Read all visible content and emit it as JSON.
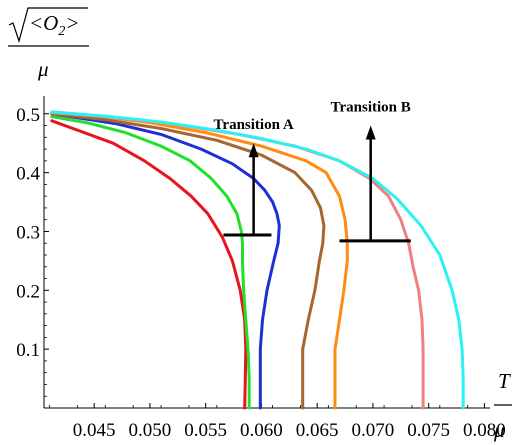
{
  "chart_data": {
    "type": "line",
    "xlabel_top": "T",
    "xlabel_bottom": "μ",
    "ylabel_top": "<O",
    "ylabel_sub": "2",
    "ylabel_top_close": ">",
    "ylabel_bottom": "μ",
    "xlim": [
      0.0405,
      0.0805
    ],
    "ylim": [
      0.0,
      0.52
    ],
    "x_ticks": [
      {
        "value": 0.045,
        "label": "0.045"
      },
      {
        "value": 0.05,
        "label": "0.050"
      },
      {
        "value": 0.055,
        "label": "0.055"
      },
      {
        "value": 0.06,
        "label": "0.060"
      },
      {
        "value": 0.065,
        "label": "0.065"
      },
      {
        "value": 0.07,
        "label": "0.070"
      },
      {
        "value": 0.075,
        "label": "0.075"
      },
      {
        "value": 0.08,
        "label": "0.080"
      }
    ],
    "y_ticks": [
      {
        "value": 0.1,
        "label": "0.1"
      },
      {
        "value": 0.2,
        "label": "0.2"
      },
      {
        "value": 0.3,
        "label": "0.3"
      },
      {
        "value": 0.4,
        "label": "0.4"
      },
      {
        "value": 0.5,
        "label": "0.5"
      }
    ],
    "series": [
      {
        "color": "#e8141b",
        "x": [
          0.0585,
          0.05855,
          0.0586,
          0.0585,
          0.0581,
          0.0574,
          0.0565,
          0.0552,
          0.0537,
          0.0518,
          0.0495,
          0.0467,
          0.0438,
          0.0412
        ],
        "y": [
          0.0,
          0.05,
          0.1,
          0.15,
          0.2,
          0.25,
          0.29,
          0.33,
          0.36,
          0.39,
          0.42,
          0.45,
          0.47,
          0.488
        ]
      },
      {
        "color": "#22e02a",
        "x": [
          0.0589,
          0.0589,
          0.0588,
          0.0586,
          0.0584,
          0.0583,
          0.0583,
          0.0582,
          0.0578,
          0.0569,
          0.0555,
          0.0536,
          0.051,
          0.0478,
          0.0443,
          0.0412
        ],
        "y": [
          0.0,
          0.05,
          0.1,
          0.15,
          0.2,
          0.25,
          0.28,
          0.3,
          0.33,
          0.36,
          0.39,
          0.42,
          0.445,
          0.468,
          0.485,
          0.495
        ]
      },
      {
        "color": "#1f2fd4",
        "x": [
          0.0599,
          0.0599,
          0.0599,
          0.0601,
          0.0605,
          0.0611,
          0.0615,
          0.0616,
          0.0614,
          0.061,
          0.0603,
          0.0593,
          0.0574,
          0.0546,
          0.051,
          0.047,
          0.0412
        ],
        "y": [
          0.0,
          0.05,
          0.1,
          0.15,
          0.2,
          0.25,
          0.28,
          0.31,
          0.33,
          0.35,
          0.37,
          0.39,
          0.415,
          0.44,
          0.465,
          0.483,
          0.5
        ]
      },
      {
        "color": "#a5662f",
        "x": [
          0.0637,
          0.0637,
          0.0637,
          0.0642,
          0.0648,
          0.0652,
          0.0655,
          0.0656,
          0.0653,
          0.0645,
          0.063,
          0.06,
          0.056,
          0.051,
          0.046,
          0.0412
        ],
        "y": [
          0.0,
          0.05,
          0.1,
          0.15,
          0.2,
          0.25,
          0.28,
          0.31,
          0.34,
          0.37,
          0.4,
          0.43,
          0.455,
          0.475,
          0.49,
          0.5
        ]
      },
      {
        "color": "#ff8c10",
        "x": [
          0.0666,
          0.0666,
          0.0666,
          0.067,
          0.0674,
          0.0677,
          0.0677,
          0.0675,
          0.067,
          0.0658,
          0.064,
          0.06,
          0.055,
          0.05,
          0.045,
          0.0412
        ],
        "y": [
          0.0,
          0.05,
          0.1,
          0.15,
          0.2,
          0.25,
          0.28,
          0.32,
          0.36,
          0.4,
          0.42,
          0.445,
          0.468,
          0.485,
          0.497,
          0.503
        ]
      },
      {
        "color": "#f08080",
        "x": [
          0.0745,
          0.0745,
          0.0745,
          0.0744,
          0.0741,
          0.0736,
          0.0732,
          0.0725,
          0.0714,
          0.0697,
          0.067,
          0.063,
          0.058,
          0.052,
          0.046,
          0.0412
        ],
        "y": [
          0.0,
          0.05,
          0.1,
          0.15,
          0.2,
          0.24,
          0.28,
          0.32,
          0.36,
          0.39,
          0.42,
          0.445,
          0.465,
          0.483,
          0.495,
          0.502
        ]
      },
      {
        "color": "#2af2f2",
        "x": [
          0.0781,
          0.0781,
          0.078,
          0.0777,
          0.0771,
          0.076,
          0.0743,
          0.0722,
          0.07,
          0.067,
          0.064,
          0.06,
          0.056,
          0.051,
          0.046,
          0.0412
        ],
        "y": [
          0.0,
          0.05,
          0.1,
          0.15,
          0.2,
          0.26,
          0.31,
          0.355,
          0.39,
          0.42,
          0.44,
          0.458,
          0.472,
          0.486,
          0.496,
          0.503
        ]
      }
    ],
    "annotations": [
      {
        "text": "Transition A",
        "anchor_x": 0.0593,
        "anchor_y": 0.31,
        "bar_x": [
          0.0566,
          0.0609
        ],
        "bar_y": 0.294,
        "arrow_top_y": 0.45
      },
      {
        "text": "Transition B",
        "anchor_x": 0.0698,
        "anchor_y": 0.31,
        "bar_x": [
          0.067,
          0.0734
        ],
        "bar_y": 0.284,
        "arrow_top_y": 0.48
      }
    ]
  }
}
